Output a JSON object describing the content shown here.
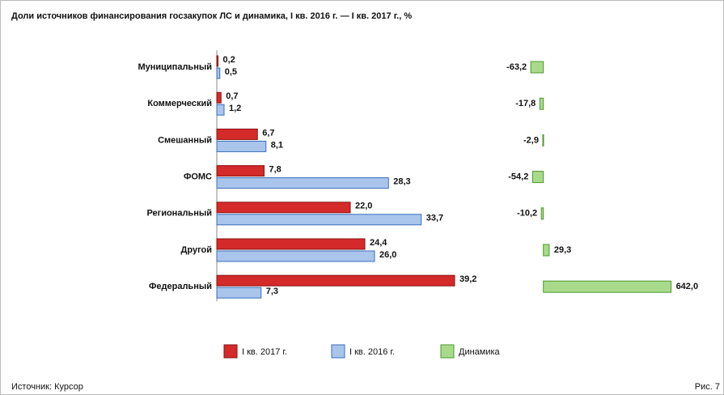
{
  "chart_data": {
    "type": "bar",
    "orientation": "horizontal",
    "title": "Доли источников финансирования госзакупок ЛС и динамика, I кв. 2016 г. — I кв. 2017 г., %",
    "categories": [
      "Муниципальный",
      "Коммерческий",
      "Смешанный",
      "ФОМС",
      "Региональный",
      "Другой",
      "Федеральный"
    ],
    "series": [
      {
        "name": "I кв. 2017 г.",
        "color": "#d42a2a",
        "values": [
          0.2,
          0.7,
          6.7,
          7.8,
          22.0,
          24.4,
          39.2
        ],
        "value_labels": [
          "0,2",
          "0,7",
          "6,7",
          "7,8",
          "22,0",
          "24,4",
          "39,2"
        ]
      },
      {
        "name": "I кв. 2016 г.",
        "color": "#a9c5ec",
        "values": [
          0.5,
          1.2,
          8.1,
          28.3,
          33.7,
          26.0,
          7.3
        ],
        "value_labels": [
          "0,5",
          "1,2",
          "8,1",
          "28,3",
          "33,7",
          "26,0",
          "7,3"
        ]
      },
      {
        "name": "Динамика",
        "color": "#a9da8c",
        "axis": "x2",
        "values": [
          -63.2,
          -17.8,
          -2.9,
          -54.2,
          -10.2,
          29.3,
          642.0
        ],
        "value_labels": [
          "-63,2",
          "-17,8",
          "-2,9",
          "-54,2",
          "-10,2",
          "29,3",
          "642,0"
        ]
      }
    ],
    "xlim": [
      0,
      40
    ],
    "x2lim": [
      -80,
      660
    ],
    "source": "Источник: Курсор",
    "figure": "Рис. 7"
  }
}
